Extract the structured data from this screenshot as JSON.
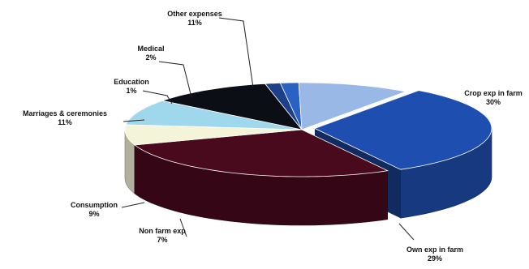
{
  "chart_data": {
    "type": "pie",
    "title": "",
    "style": "3d-exploded",
    "slices": [
      {
        "label": "Crop exp in farm",
        "value": 30,
        "value_label": "30%",
        "color": "#1e4fb0"
      },
      {
        "label": "Own exp in farm",
        "value": 29,
        "value_label": "29%",
        "color": "#4a0a1e"
      },
      {
        "label": "Non farm exp",
        "value": 7,
        "value_label": "7%",
        "color": "#f4f4d8"
      },
      {
        "label": "Consumption",
        "value": 9,
        "value_label": "9%",
        "color": "#9fd8ec"
      },
      {
        "label": "Marriages & ceremonies",
        "value": 11,
        "value_label": "11%",
        "color": "#0b0e14"
      },
      {
        "label": "Education",
        "value": 1,
        "value_label": "1%",
        "color": "#1c3f8a"
      },
      {
        "label": "Medical",
        "value": 2,
        "value_label": "2%",
        "color": "#2a62c4"
      },
      {
        "label": "Other expenses",
        "value": 11,
        "value_label": "11%",
        "color": "#9ab8e6"
      }
    ]
  }
}
